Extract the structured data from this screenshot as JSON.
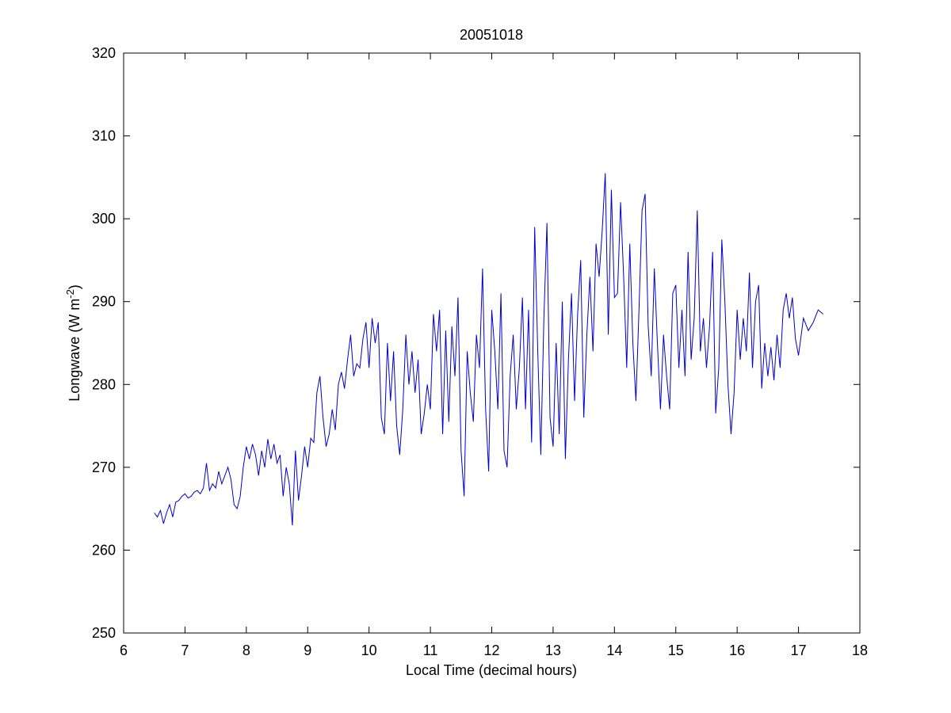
{
  "chart_data": {
    "type": "line",
    "title": "20051018",
    "xlabel": "Local Time (decimal hours)",
    "ylabel": "Longwave (W m",
    "ylabel_superscript": "-2",
    "ylabel_suffix": ")",
    "xlim": [
      6,
      18
    ],
    "ylim": [
      250,
      320
    ],
    "xticks": [
      6,
      7,
      8,
      9,
      10,
      11,
      12,
      13,
      14,
      15,
      16,
      17,
      18
    ],
    "yticks": [
      250,
      260,
      270,
      280,
      290,
      300,
      310,
      320
    ],
    "grid": false,
    "x": [
      6.5,
      6.55,
      6.6,
      6.65,
      6.7,
      6.75,
      6.8,
      6.85,
      6.9,
      6.95,
      7,
      7.05,
      7.1,
      7.15,
      7.2,
      7.25,
      7.3,
      7.35,
      7.4,
      7.45,
      7.5,
      7.55,
      7.6,
      7.65,
      7.7,
      7.75,
      7.8,
      7.85,
      7.9,
      7.95,
      8,
      8.05,
      8.1,
      8.15,
      8.2,
      8.25,
      8.3,
      8.35,
      8.4,
      8.45,
      8.5,
      8.55,
      8.6,
      8.65,
      8.7,
      8.75,
      8.8,
      8.85,
      8.9,
      8.95,
      9,
      9.05,
      9.1,
      9.15,
      9.2,
      9.25,
      9.3,
      9.35,
      9.4,
      9.45,
      9.5,
      9.55,
      9.6,
      9.65,
      9.7,
      9.75,
      9.8,
      9.85,
      9.9,
      9.95,
      10,
      10.05,
      10.1,
      10.15,
      10.2,
      10.25,
      10.3,
      10.35,
      10.4,
      10.45,
      10.5,
      10.55,
      10.6,
      10.65,
      10.7,
      10.75,
      10.8,
      10.85,
      10.9,
      10.95,
      11,
      11.05,
      11.1,
      11.15,
      11.2,
      11.25,
      11.3,
      11.35,
      11.4,
      11.45,
      11.5,
      11.55,
      11.6,
      11.65,
      11.7,
      11.75,
      11.8,
      11.85,
      11.9,
      11.95,
      12,
      12.05,
      12.1,
      12.15,
      12.2,
      12.25,
      12.3,
      12.35,
      12.4,
      12.45,
      12.5,
      12.55,
      12.6,
      12.65,
      12.7,
      12.75,
      12.8,
      12.85,
      12.9,
      12.95,
      13,
      13.05,
      13.1,
      13.15,
      13.2,
      13.25,
      13.3,
      13.35,
      13.4,
      13.45,
      13.5,
      13.55,
      13.6,
      13.65,
      13.7,
      13.75,
      13.8,
      13.85,
      13.9,
      13.95,
      14,
      14.05,
      14.1,
      14.15,
      14.2,
      14.25,
      14.3,
      14.35,
      14.4,
      14.45,
      14.5,
      14.55,
      14.6,
      14.65,
      14.7,
      14.75,
      14.8,
      14.85,
      14.9,
      14.95,
      15,
      15.05,
      15.1,
      15.15,
      15.2,
      15.25,
      15.3,
      15.35,
      15.4,
      15.45,
      15.5,
      15.55,
      15.6,
      15.65,
      15.7,
      15.75,
      15.8,
      15.85,
      15.9,
      15.95,
      16,
      16.05,
      16.1,
      16.15,
      16.2,
      16.25,
      16.3,
      16.35,
      16.4,
      16.45,
      16.5,
      16.55,
      16.6,
      16.65,
      16.7,
      16.75,
      16.8,
      16.85,
      16.9,
      16.95,
      17,
      17.08,
      17.16,
      17.24,
      17.32,
      17.4
    ],
    "series": [
      {
        "color": "#0000cc",
        "values": [
          264.5,
          264,
          264.8,
          263.2,
          264.5,
          265.5,
          264,
          265.8,
          266,
          266.5,
          266.8,
          266.3,
          266.5,
          267,
          267.2,
          266.8,
          267.5,
          270.5,
          267.2,
          268,
          267.5,
          269.5,
          268,
          269,
          270,
          268.5,
          265.5,
          265,
          266.5,
          270,
          272.5,
          271,
          272.8,
          271.5,
          269,
          272,
          270,
          273.4,
          271,
          272.8,
          270.5,
          271.5,
          266.5,
          270,
          268,
          263,
          272,
          266,
          269,
          272.5,
          270,
          273.5,
          273,
          279,
          281,
          276,
          272.5,
          274,
          277,
          274.5,
          280,
          281.5,
          279.5,
          283,
          286,
          281,
          282.5,
          282,
          285.5,
          287.5,
          282,
          288,
          285,
          287.5,
          276,
          274,
          285,
          278,
          284,
          275,
          271.5,
          277,
          286,
          280,
          284,
          279,
          283,
          274,
          276.5,
          280,
          277,
          288.5,
          284,
          289,
          274,
          286.5,
          275.5,
          287,
          281,
          290.5,
          272,
          266.5,
          284,
          279,
          275.5,
          286,
          282,
          294,
          277,
          269.5,
          289,
          284,
          277,
          291,
          272,
          270,
          281,
          286,
          277,
          282,
          290.5,
          277,
          289,
          273,
          299,
          284,
          271.5,
          288,
          299.5,
          276,
          272.5,
          285,
          274,
          290,
          271,
          283,
          291,
          278,
          288.5,
          295,
          276,
          286,
          293,
          284,
          297,
          293,
          298.5,
          305.5,
          286,
          303.5,
          290.5,
          291,
          302,
          293,
          282,
          297,
          285,
          278,
          289,
          301,
          303,
          287,
          281,
          294,
          285,
          277,
          286,
          281,
          277,
          291,
          292,
          282,
          289,
          281,
          296,
          283,
          288,
          301,
          284,
          288,
          282,
          287,
          296,
          276.5,
          282,
          297.5,
          290,
          280,
          274,
          279,
          289,
          283,
          288,
          284,
          293.5,
          282,
          290,
          292,
          279.5,
          285,
          281,
          284.5,
          280.5,
          286,
          282,
          289,
          291,
          288,
          290.5,
          285.5,
          283.5,
          288,
          286.5,
          287.5,
          289,
          288.5
        ]
      }
    ]
  }
}
